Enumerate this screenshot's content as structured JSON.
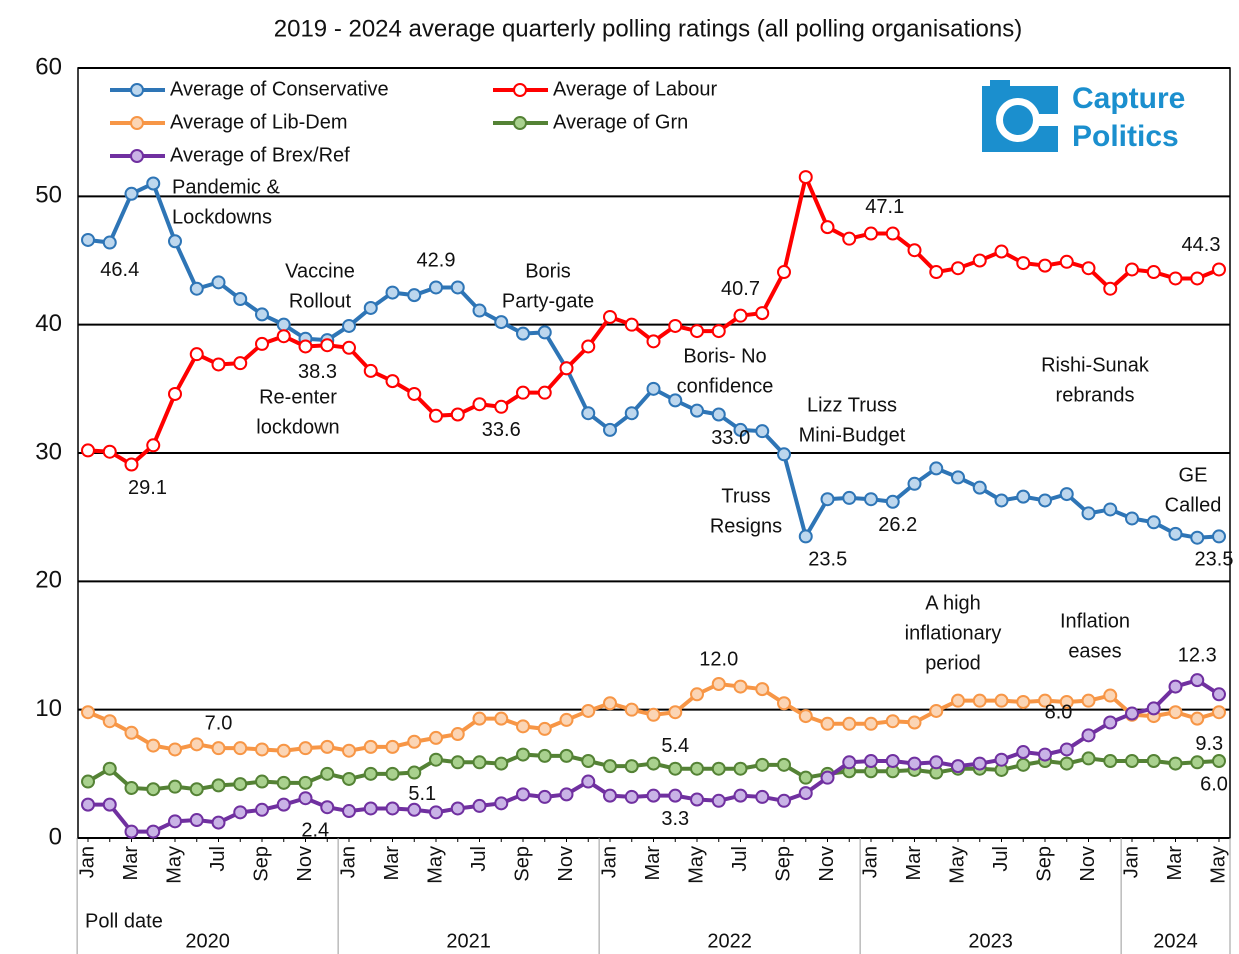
{
  "chart_data": {
    "type": "line",
    "title": "2019 - 2024 average quarterly polling ratings (all polling organisations)",
    "x_label": "Poll date",
    "x_groups": [
      "2020",
      "2021",
      "2022",
      "2023",
      "2024"
    ],
    "categories": [
      "Jan",
      null,
      "Mar",
      null,
      "May",
      null,
      "Jul",
      null,
      "Sep",
      null,
      "Nov",
      null,
      "Jan",
      null,
      "Mar",
      null,
      "May",
      null,
      "Jul",
      null,
      "Sep",
      null,
      "Nov",
      null,
      "Jan",
      null,
      "Mar",
      null,
      "May",
      null,
      "Jul",
      null,
      "Sep",
      null,
      "Nov",
      null,
      "Jan",
      null,
      "Mar",
      null,
      "May",
      null,
      "Jul",
      null,
      "Sep",
      null,
      "Nov",
      null,
      "Jan",
      null,
      "Mar",
      null,
      "May"
    ],
    "ylim": [
      0,
      60
    ],
    "yticks": [
      0,
      10,
      20,
      30,
      40,
      50,
      60
    ],
    "grid": true,
    "legend": "top-left",
    "series": [
      {
        "name": "Average of Conservative",
        "color": "#2e75b6",
        "marker_fill": "#bdd7ee",
        "values": [
          46.6,
          46.4,
          50.2,
          51.0,
          46.5,
          42.8,
          43.3,
          42.0,
          40.8,
          40.0,
          38.9,
          38.8,
          39.9,
          41.3,
          42.5,
          42.3,
          42.9,
          42.9,
          41.1,
          40.2,
          39.3,
          39.4,
          36.6,
          33.1,
          31.8,
          33.1,
          35.0,
          34.1,
          33.3,
          33.0,
          31.8,
          31.7,
          29.9,
          23.5,
          26.4,
          26.5,
          26.4,
          26.2,
          27.6,
          28.8,
          28.1,
          27.3,
          26.3,
          26.6,
          26.3,
          26.8,
          25.3,
          25.6,
          24.9,
          24.6,
          23.7,
          23.4,
          23.5
        ],
        "value_labels": [
          null,
          "46.4",
          null,
          null,
          null,
          null,
          null,
          null,
          null,
          null,
          null,
          null,
          null,
          null,
          null,
          null,
          "42.9",
          null,
          null,
          null,
          null,
          null,
          null,
          null,
          null,
          null,
          null,
          null,
          null,
          "33.0",
          null,
          null,
          null,
          "23.5",
          null,
          null,
          null,
          "26.2",
          null,
          null,
          null,
          null,
          null,
          null,
          null,
          null,
          null,
          null,
          null,
          null,
          null,
          null,
          "23.5"
        ]
      },
      {
        "name": "Average of Labour",
        "color": "#ff0000",
        "marker_fill": "#ffffff",
        "values": [
          30.2,
          30.1,
          29.1,
          30.6,
          34.6,
          37.7,
          36.9,
          37.0,
          38.5,
          39.1,
          38.3,
          38.4,
          38.2,
          36.4,
          35.6,
          34.6,
          32.9,
          33.0,
          33.8,
          33.6,
          34.7,
          34.7,
          36.6,
          38.3,
          40.6,
          40.0,
          38.7,
          39.9,
          39.5,
          39.5,
          40.7,
          40.9,
          44.1,
          51.5,
          47.6,
          46.7,
          47.1,
          47.1,
          45.8,
          44.1,
          44.4,
          45.0,
          45.7,
          44.8,
          44.6,
          44.9,
          44.4,
          42.8,
          44.3,
          44.1,
          43.6,
          43.6,
          44.3
        ],
        "value_labels": [
          null,
          null,
          "29.1",
          null,
          null,
          null,
          null,
          null,
          null,
          null,
          "38.3",
          null,
          null,
          null,
          null,
          null,
          null,
          null,
          null,
          "33.6",
          null,
          null,
          null,
          null,
          null,
          null,
          null,
          null,
          null,
          null,
          "40.7",
          null,
          null,
          null,
          null,
          null,
          null,
          "47.1",
          null,
          null,
          null,
          null,
          null,
          null,
          null,
          null,
          null,
          null,
          null,
          null,
          null,
          null,
          "44.3"
        ]
      },
      {
        "name": "Average of Lib-Dem",
        "color": "#f79646",
        "marker_fill": "#fbd5b5",
        "values": [
          9.8,
          9.1,
          8.2,
          7.2,
          6.9,
          7.3,
          7.0,
          7.0,
          6.9,
          6.8,
          7.0,
          7.1,
          6.8,
          7.1,
          7.1,
          7.5,
          7.8,
          8.1,
          9.3,
          9.3,
          8.7,
          8.5,
          9.2,
          9.9,
          10.5,
          10.0,
          9.6,
          9.8,
          11.2,
          12.0,
          11.8,
          11.6,
          10.5,
          9.5,
          8.9,
          8.9,
          8.9,
          9.1,
          9.0,
          9.9,
          10.7,
          10.7,
          10.7,
          10.6,
          10.7,
          10.6,
          10.7,
          11.1,
          9.6,
          9.5,
          9.8,
          9.3,
          9.8
        ],
        "value_labels": [
          null,
          null,
          null,
          null,
          null,
          null,
          "7.0",
          null,
          null,
          null,
          null,
          null,
          null,
          null,
          null,
          null,
          null,
          null,
          null,
          null,
          null,
          null,
          null,
          null,
          null,
          null,
          null,
          null,
          null,
          "12.0",
          null,
          null,
          null,
          null,
          null,
          null,
          null,
          null,
          null,
          null,
          null,
          null,
          null,
          null,
          null,
          null,
          null,
          null,
          null,
          null,
          null,
          "9.3",
          null
        ]
      },
      {
        "name": "Average of Grn",
        "color": "#548235",
        "marker_fill": "#a9d18e",
        "values": [
          4.4,
          5.4,
          3.9,
          3.8,
          4.0,
          3.8,
          4.1,
          4.2,
          4.4,
          4.3,
          4.3,
          5.0,
          4.6,
          5.0,
          5.0,
          5.1,
          6.1,
          5.9,
          5.9,
          5.8,
          6.5,
          6.4,
          6.4,
          6.0,
          5.6,
          5.6,
          5.8,
          5.4,
          5.4,
          5.4,
          5.4,
          5.7,
          5.7,
          4.7,
          5.0,
          5.2,
          5.2,
          5.2,
          5.3,
          5.1,
          5.4,
          5.4,
          5.3,
          5.7,
          6.0,
          5.8,
          6.2,
          6.0,
          6.0,
          6.0,
          5.8,
          5.9,
          6.0
        ],
        "value_labels": [
          null,
          null,
          null,
          null,
          null,
          null,
          null,
          null,
          null,
          null,
          null,
          null,
          null,
          null,
          null,
          "5.1",
          null,
          null,
          null,
          null,
          null,
          null,
          null,
          null,
          null,
          null,
          null,
          "5.4",
          null,
          null,
          null,
          null,
          null,
          null,
          null,
          null,
          null,
          null,
          null,
          null,
          null,
          null,
          null,
          null,
          null,
          null,
          null,
          null,
          null,
          null,
          null,
          null,
          "6.0"
        ]
      },
      {
        "name": "Average of Brex/Ref",
        "color": "#7030a0",
        "marker_fill": "#c9b3e6",
        "values": [
          2.6,
          2.6,
          0.5,
          0.5,
          1.3,
          1.4,
          1.2,
          2.0,
          2.2,
          2.6,
          3.1,
          2.4,
          2.1,
          2.3,
          2.3,
          2.2,
          2.0,
          2.3,
          2.5,
          2.7,
          3.4,
          3.2,
          3.4,
          4.4,
          3.3,
          3.2,
          3.3,
          3.3,
          3.0,
          2.9,
          3.3,
          3.2,
          2.9,
          3.5,
          4.7,
          5.9,
          6.0,
          6.0,
          5.8,
          5.9,
          5.6,
          5.8,
          6.1,
          6.7,
          6.5,
          6.9,
          8.0,
          9.0,
          9.7,
          10.1,
          11.8,
          12.3,
          11.2
        ],
        "value_labels": [
          null,
          null,
          null,
          null,
          null,
          null,
          null,
          null,
          null,
          null,
          null,
          "2.4",
          null,
          null,
          null,
          null,
          null,
          null,
          null,
          null,
          null,
          null,
          null,
          null,
          null,
          null,
          null,
          "3.3",
          null,
          null,
          null,
          null,
          null,
          null,
          null,
          null,
          null,
          null,
          null,
          null,
          null,
          null,
          null,
          null,
          null,
          null,
          "8.0",
          null,
          null,
          null,
          null,
          "12.3",
          null
        ]
      }
    ],
    "annotations": [
      [
        "Pandemic &",
        "Lockdowns"
      ],
      [
        "Vaccine",
        "Rollout"
      ],
      [
        "Re-enter",
        "lockdown"
      ],
      [
        "Boris",
        "Party-gate"
      ],
      [
        "Boris- No",
        "confidence"
      ],
      [
        "Lizz Truss",
        "Mini-Budget"
      ],
      [
        "Truss",
        "Resigns"
      ],
      [
        "Rishi-Sunak",
        "rebrands"
      ],
      [
        "GE",
        "Called"
      ],
      [
        "A high",
        "inflationary",
        "period"
      ],
      [
        "Inflation",
        "eases"
      ]
    ],
    "logo_text": [
      "Capture",
      "Politics"
    ]
  }
}
